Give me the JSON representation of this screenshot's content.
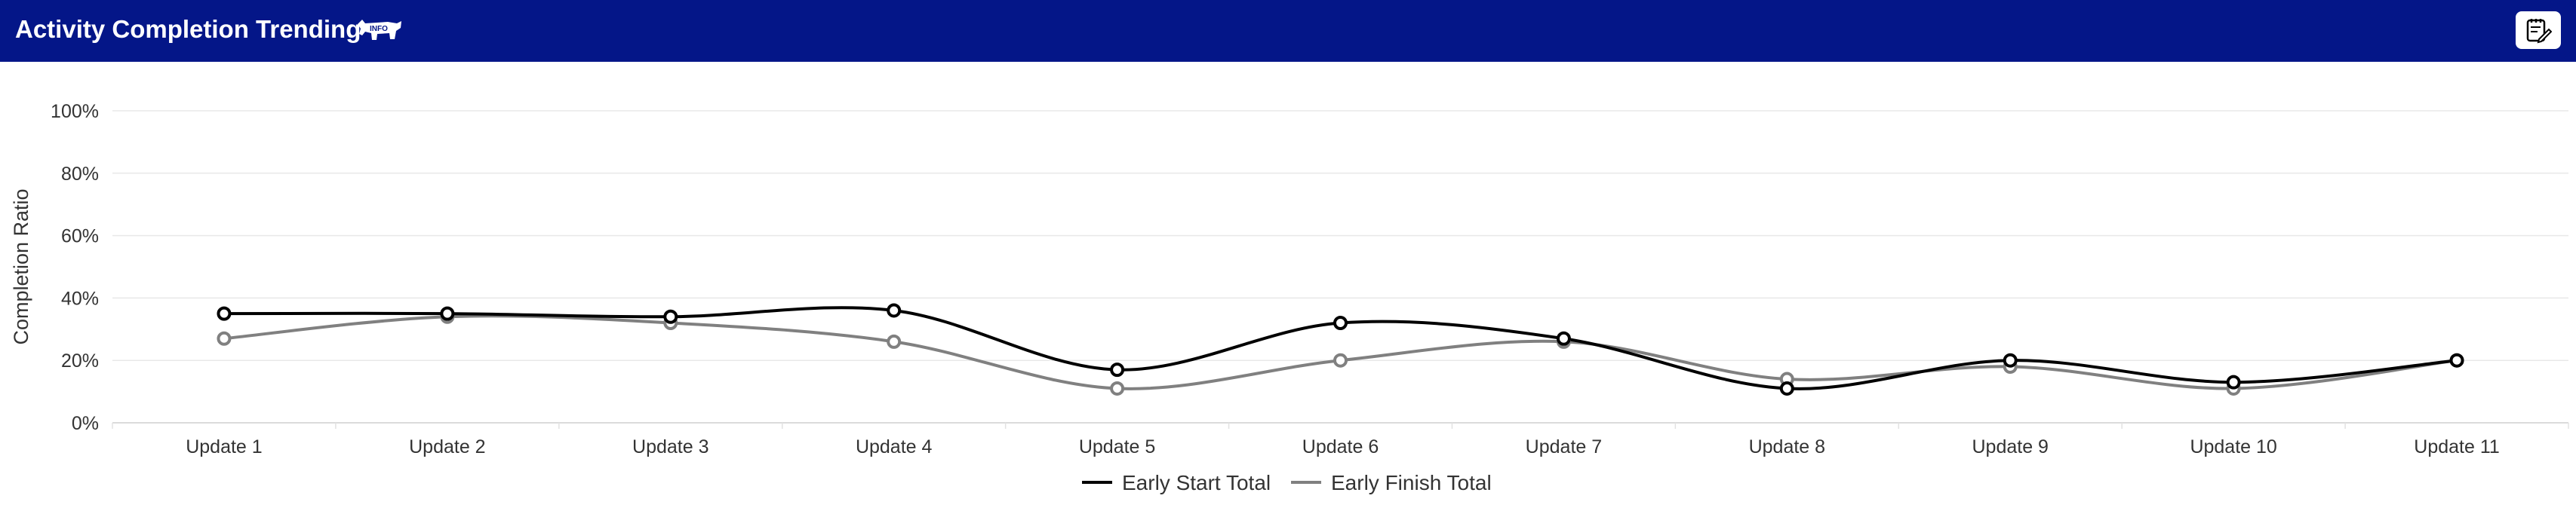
{
  "header": {
    "title": "Activity Completion Trending",
    "info_badge": "INFO",
    "background_color": "#041688",
    "info_icon": "info-cow-icon",
    "notes_icon": "notes-pen-icon"
  },
  "chart_data": {
    "type": "line",
    "title": "",
    "xlabel": "",
    "ylabel": "Completion Ratio",
    "categories": [
      "Update 1",
      "Update 2",
      "Update 3",
      "Update 4",
      "Update 5",
      "Update 6",
      "Update 7",
      "Update 8",
      "Update 9",
      "Update 10",
      "Update 11"
    ],
    "ylim": [
      0,
      100
    ],
    "yticks": [
      "0%",
      "20%",
      "40%",
      "60%",
      "80%",
      "100%"
    ],
    "grid": true,
    "legend_position": "bottom-center",
    "series": [
      {
        "name": "Early Start Total",
        "color": "#000000",
        "values": [
          35,
          35,
          34,
          36,
          17,
          32,
          27,
          11,
          20,
          13,
          20
        ]
      },
      {
        "name": "Early Finish Total",
        "color": "#808080",
        "values": [
          27,
          34,
          32,
          26,
          11,
          20,
          26,
          14,
          18,
          11,
          20
        ]
      }
    ]
  }
}
